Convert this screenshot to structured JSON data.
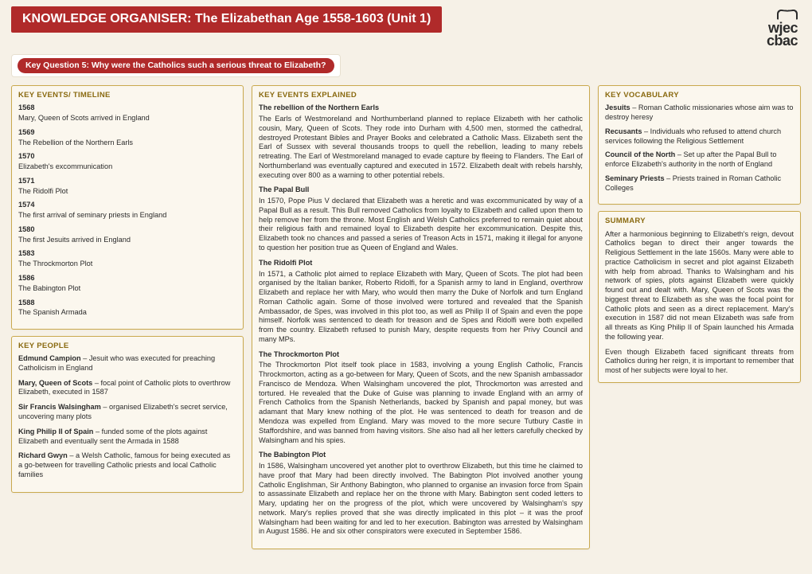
{
  "header": {
    "title": "KNOWLEDGE ORGANISER: The Elizabethan Age 1558-1603 (Unit 1)",
    "logo_line1": "wjec",
    "logo_line2": "cbac",
    "key_question": "Key Question 5: Why were the Catholics such a serious threat to Elizabeth?"
  },
  "sections": {
    "timeline_title": "KEY EVENTS/ TIMELINE",
    "explained_title": "KEY EVENTS EXPLAINED",
    "people_title": "KEY PEOPLE",
    "vocab_title": "KEY VOCABULARY",
    "summary_title": "SUMMARY"
  },
  "timeline": [
    {
      "year": "1568",
      "text": "Mary, Queen of Scots arrived in England"
    },
    {
      "year": "1569",
      "text": "The Rebellion of the Northern Earls"
    },
    {
      "year": "1570",
      "text": "Elizabeth's excommunication"
    },
    {
      "year": "1571",
      "text": "The Ridolfi Plot"
    },
    {
      "year": "1574",
      "text": "The first arrival of seminary priests in England"
    },
    {
      "year": "1580",
      "text": "The first Jesuits arrived in England"
    },
    {
      "year": "1583",
      "text": "The Throckmorton Plot"
    },
    {
      "year": "1586",
      "text": "The Babington Plot"
    },
    {
      "year": "1588",
      "text": "The Spanish Armada"
    }
  ],
  "people": [
    {
      "name": "Edmund Campion",
      "desc": " – Jesuit who was executed for preaching Catholicism in England"
    },
    {
      "name": "Mary, Queen of Scots",
      "desc": " – focal point of Catholic plots to overthrow Elizabeth, executed in 1587"
    },
    {
      "name": "Sir Francis Walsingham",
      "desc": " – organised Elizabeth's secret service, uncovering many plots"
    },
    {
      "name": "King Philip II of Spain",
      "desc": " – funded some of the plots against Elizabeth and eventually sent the Armada in 1588"
    },
    {
      "name": "Richard Gwyn",
      "desc": " – a Welsh Catholic, famous for being executed as a go-between for travelling Catholic priests and local Catholic families"
    }
  ],
  "explained": [
    {
      "title": "The rebellion of the Northern Earls",
      "text": "The Earls of Westmoreland and Northumberland planned to replace Elizabeth with her catholic cousin, Mary, Queen of Scots. They rode into Durham with 4,500 men, stormed the cathedral, destroyed Protestant Bibles and Prayer Books and celebrated a Catholic Mass. Elizabeth sent the Earl of Sussex with several thousands troops to quell the rebellion, leading to many rebels retreating. The Earl of Westmoreland managed to evade capture by fleeing to Flanders. The Earl of Northumberland was eventually captured and executed in 1572. Elizabeth dealt with rebels harshly, executing over 800 as a warning to other potential rebels."
    },
    {
      "title": "The Papal Bull",
      "text": "In 1570, Pope Pius V declared that Elizabeth was a heretic and was excommunicated by way of a Papal Bull as a result. This Bull removed Catholics from loyalty to Elizabeth and called upon them to help remove her from the throne. Most English and Welsh Catholics preferred to remain quiet about their religious faith and remained loyal to Elizabeth despite her excommunication. Despite this, Elizabeth took no chances and passed a series of Treason Acts in 1571, making it illegal for anyone to question her position true as Queen of England and Wales."
    },
    {
      "title": "The Ridolfi Plot",
      "text": "In 1571, a Catholic plot aimed to replace Elizabeth with Mary, Queen of Scots. The plot had been organised by the Italian banker, Roberto Ridolfi, for a Spanish army to land in England, overthrow Elizabeth and replace her with Mary, who would then marry the Duke of Norfolk and turn England Roman Catholic again. Some of those involved were tortured and revealed that the Spanish Ambassador, de Spes, was involved in this plot too, as well as Philip II of Spain and even the pope himself. Norfolk was sentenced to death for treason and de Spes and Ridolfi were both expelled from the country. Elizabeth refused to punish Mary, despite requests from her Privy Council and many MPs."
    },
    {
      "title": "The Throckmorton Plot",
      "text": "The Throckmorton Plot itself took place in 1583, involving a young English Catholic, Francis Throckmorton, acting as a go-between for Mary, Queen of Scots, and the new Spanish ambassador Francisco de Mendoza. When Walsingham uncovered the plot, Throckmorton was arrested and tortured. He revealed that the Duke of Guise was planning to invade England with an army of French Catholics from the Spanish Netherlands, backed by Spanish and papal money, but was adamant that Mary knew nothing of the plot. He was sentenced to death for treason and de Mendoza was expelled from England. Mary was moved to the more secure Tutbury Castle in Staffordshire, and was banned from having visitors. She also had all her letters carefully checked by Walsingham and his spies."
    },
    {
      "title": "The Babington Plot",
      "text": "In 1586, Walsingham uncovered yet another plot to overthrow Elizabeth, but this time he claimed to have proof that Mary had been directly involved. The Babington Plot involved another young Catholic Englishman, Sir Anthony Babington, who planned to organise an invasion force from Spain to assassinate Elizabeth and replace her on the throne with Mary. Babington sent coded letters to Mary, updating her on the progress of the plot, which were uncovered by Walsingham's spy network. Mary's replies proved that she was directly implicated in this plot – it was the proof Walsingham had been waiting for and led to her execution. Babington was arrested by Walsingham in August 1586. He and six other conspirators were executed in September 1586."
    }
  ],
  "vocab": [
    {
      "term": "Jesuits",
      "def": " – Roman Catholic missionaries whose aim was to destroy heresy"
    },
    {
      "term": "Recusants",
      "def": " – Individuals who refused to attend church services following the Religious Settlement"
    },
    {
      "term": "Council of the North",
      "def": " – Set up after the Papal Bull to enforce Elizabeth's authority in the north of England"
    },
    {
      "term": "Seminary Priests",
      "def": " – Priests trained in Roman Catholic Colleges"
    }
  ],
  "summary": [
    "After a harmonious beginning to Elizabeth's reign, devout Catholics began to direct their anger towards the Religious Settlement in the late 1560s. Many were able to practice Catholicism in secret and plot against Elizabeth with help from abroad. Thanks to Walsingham and his network of spies, plots against Elizabeth were quickly found out and dealt with. Mary, Queen of Scots was the biggest threat to Elizabeth as she was the focal point for Catholic plots and seen as a direct replacement. Mary's execution in 1587 did not mean Elizabeth was safe from all threats as King Philip II of Spain launched his Armada the following year.",
    "Even though Elizabeth faced significant threats from Catholics during her reign, it is important to remember that most of her subjects were loyal to her."
  ]
}
